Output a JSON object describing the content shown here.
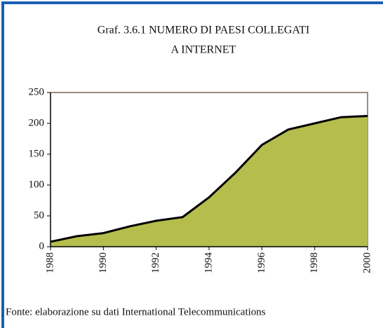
{
  "chart_data": {
    "type": "area",
    "title": [
      "Graf. 3.6.1 NUMERO DI PAESI COLLEGATI",
      "A INTERNET"
    ],
    "source": "Fonte: elaborazione su dati International Telecommunications",
    "x": [
      1988,
      1989,
      1990,
      1991,
      1992,
      1993,
      1994,
      1995,
      1996,
      1997,
      1998,
      1999,
      2000
    ],
    "values": [
      8,
      17,
      22,
      33,
      42,
      48,
      80,
      120,
      165,
      190,
      200,
      210,
      212
    ],
    "color": "#b5bd4c",
    "xlim": [
      1988,
      2000
    ],
    "xticks": [
      1988,
      1990,
      1992,
      1994,
      1996,
      1998,
      2000
    ],
    "ylim": [
      0,
      250
    ],
    "yticks": [
      0,
      50,
      100,
      150,
      200,
      250
    ]
  }
}
